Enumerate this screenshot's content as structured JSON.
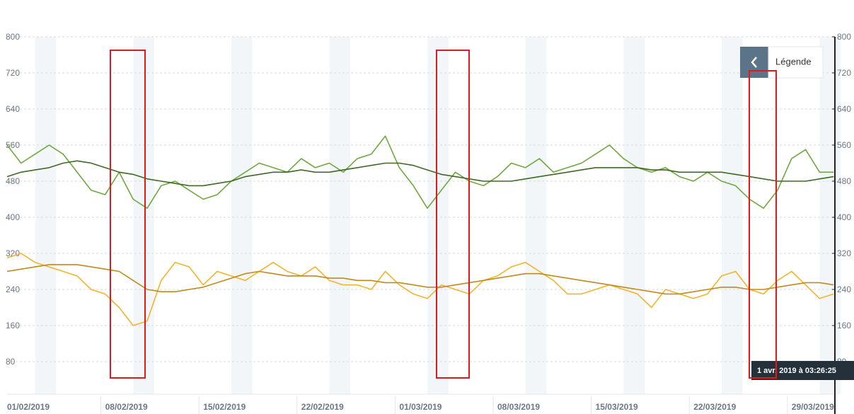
{
  "chart_data": {
    "type": "line",
    "categories": [
      "01/02/2019",
      null,
      null,
      null,
      null,
      null,
      null,
      "08/02/2019",
      null,
      null,
      null,
      null,
      null,
      null,
      "15/02/2019",
      null,
      null,
      null,
      null,
      null,
      null,
      "22/02/2019",
      null,
      null,
      null,
      null,
      null,
      null,
      "01/03/2019",
      null,
      null,
      null,
      null,
      null,
      null,
      "08/03/2019",
      null,
      null,
      null,
      null,
      null,
      null,
      "15/03/2019",
      null,
      null,
      null,
      null,
      null,
      null,
      "22/03/2019",
      null,
      null,
      null,
      null,
      null,
      null,
      "29/03/2019",
      null,
      null,
      null
    ],
    "series": [
      {
        "color": "#6fa83f",
        "values": [
          560,
          520,
          540,
          560,
          540,
          500,
          460,
          450,
          500,
          440,
          420,
          470,
          480,
          460,
          440,
          450,
          480,
          500,
          520,
          510,
          500,
          530,
          510,
          520,
          500,
          530,
          540,
          580,
          510,
          470,
          420,
          460,
          500,
          480,
          470,
          490,
          520,
          510,
          530,
          500,
          510,
          520,
          540,
          560,
          530,
          510,
          500,
          510,
          490,
          480,
          500,
          480,
          470,
          440,
          420,
          460,
          530,
          550,
          500,
          500
        ]
      },
      {
        "color": "#3f6a22",
        "values": [
          490,
          500,
          505,
          510,
          520,
          525,
          520,
          510,
          500,
          495,
          485,
          480,
          475,
          470,
          470,
          475,
          480,
          490,
          495,
          500,
          500,
          505,
          500,
          500,
          505,
          510,
          515,
          520,
          520,
          515,
          505,
          495,
          490,
          485,
          480,
          480,
          480,
          485,
          490,
          495,
          500,
          505,
          510,
          510,
          510,
          510,
          505,
          505,
          500,
          500,
          500,
          500,
          495,
          490,
          485,
          480,
          480,
          480,
          485,
          490
        ]
      },
      {
        "color": "#f3b32a",
        "values": [
          310,
          320,
          300,
          290,
          280,
          270,
          240,
          230,
          200,
          160,
          170,
          260,
          300,
          290,
          250,
          280,
          270,
          260,
          280,
          300,
          280,
          270,
          290,
          260,
          250,
          250,
          240,
          280,
          250,
          230,
          220,
          250,
          240,
          230,
          260,
          270,
          290,
          300,
          280,
          260,
          230,
          230,
          240,
          250,
          240,
          230,
          200,
          240,
          230,
          220,
          230,
          270,
          280,
          240,
          230,
          260,
          280,
          250,
          220,
          230
        ]
      },
      {
        "color": "#c08a1c",
        "values": [
          280,
          285,
          290,
          295,
          295,
          295,
          290,
          285,
          280,
          260,
          240,
          235,
          235,
          240,
          245,
          255,
          265,
          275,
          280,
          275,
          270,
          270,
          270,
          265,
          265,
          260,
          260,
          255,
          255,
          250,
          245,
          245,
          250,
          255,
          260,
          265,
          270,
          275,
          275,
          270,
          265,
          260,
          255,
          250,
          245,
          240,
          235,
          230,
          230,
          235,
          240,
          245,
          245,
          240,
          240,
          245,
          250,
          255,
          255,
          250
        ]
      }
    ],
    "ylim": [
      0,
      800
    ],
    "yticks": [
      80,
      160,
      240,
      320,
      400,
      480,
      560,
      640,
      720,
      800
    ],
    "y2lim": [
      0,
      800
    ],
    "y2ticks": [
      80,
      160,
      240,
      320,
      400,
      480,
      560,
      640,
      720,
      800
    ],
    "grid": true,
    "legend_button": "Légende",
    "tooltip": "1 avr. 2019 à 03:26:25"
  }
}
